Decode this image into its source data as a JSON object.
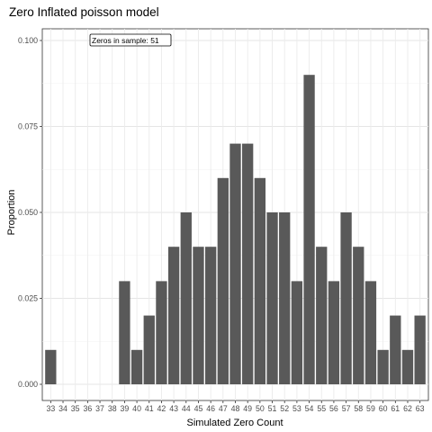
{
  "chart_data": {
    "type": "bar",
    "title": "Zero Inflated poisson model",
    "xlabel": "Simulated Zero Count",
    "ylabel": "Proportion",
    "categories": [
      "33",
      "34",
      "35",
      "36",
      "37",
      "38",
      "39",
      "40",
      "41",
      "42",
      "43",
      "44",
      "45",
      "46",
      "47",
      "48",
      "49",
      "50",
      "51",
      "52",
      "53",
      "54",
      "55",
      "56",
      "57",
      "58",
      "59",
      "60",
      "61",
      "62",
      "63"
    ],
    "values": [
      0.01,
      0,
      0,
      0,
      0,
      0,
      0.03,
      0.01,
      0.02,
      0.03,
      0.04,
      0.05,
      0.04,
      0.04,
      0.06,
      0.07,
      0.07,
      0.06,
      0.05,
      0.05,
      0.03,
      0.09,
      0.04,
      0.03,
      0.05,
      0.04,
      0.03,
      0.01,
      0.02,
      0.01,
      0.02
    ],
    "ylim": [
      0,
      0.1
    ],
    "yticks": [
      "0.000",
      "0.025",
      "0.050",
      "0.075",
      "0.100"
    ],
    "ytick_values": [
      0,
      0.025,
      0.05,
      0.075,
      0.1
    ],
    "grid": true,
    "bar_color": "#595959",
    "annotation": "Zeros in sample: 51"
  }
}
